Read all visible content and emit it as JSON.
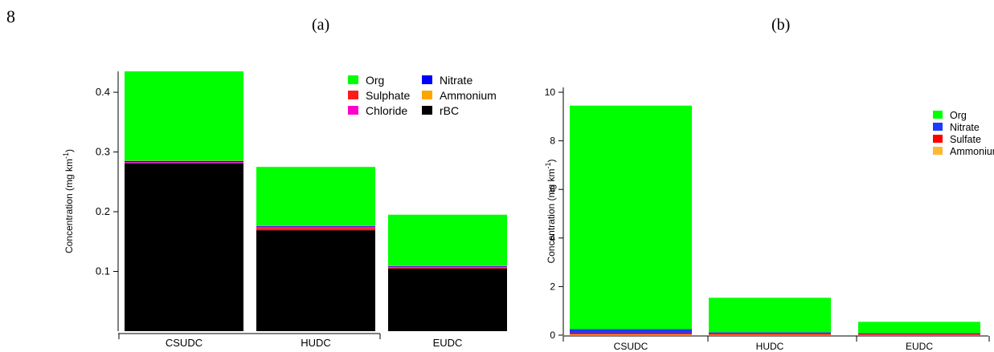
{
  "page_number": "8",
  "panels": [
    {
      "label": "(a)"
    },
    {
      "label": "(b)"
    }
  ],
  "chart_data": [
    {
      "type": "bar",
      "stacked": true,
      "categories": [
        "CSUDC",
        "HUDC",
        "EUDC"
      ],
      "ylabel": "Concentration (mg km",
      "ylabel_sup": "-1",
      "ylabel_close": ")",
      "ylim": [
        0,
        0.435
      ],
      "yticks": [
        0.1,
        0.2,
        0.3,
        0.4
      ],
      "ytick_labels": [
        "0.1",
        "0.2",
        "0.3",
        "0.4"
      ],
      "legend_position": "top-right",
      "series": [
        {
          "name": "rBC",
          "color": "#000000",
          "values": [
            0.281,
            0.169,
            0.105
          ]
        },
        {
          "name": "Sulphate",
          "color": "#ff1a1a",
          "values": [
            0.001,
            0.004,
            0.002
          ]
        },
        {
          "name": "Chloride",
          "color": "#ff00cc",
          "values": [
            0.001,
            0.002,
            0.001
          ]
        },
        {
          "name": "Nitrate",
          "color": "#0000ff",
          "values": [
            0.002,
            0.001,
            0.001
          ]
        },
        {
          "name": "Ammonium",
          "color": "#ffa500",
          "values": [
            0.0005,
            0.0005,
            0.0005
          ]
        },
        {
          "name": "Org",
          "color": "#00ff00",
          "values": [
            0.1495,
            0.0985,
            0.0855
          ]
        }
      ],
      "legend_order": [
        "Org",
        "Nitrate",
        "Sulphate",
        "Ammonium",
        "Chloride",
        "rBC"
      ]
    },
    {
      "type": "bar",
      "stacked": true,
      "categories": [
        "CSUDC",
        "HUDC",
        "EUDC"
      ],
      "ylabel": "Concentration (mg km",
      "ylabel_sup": "-1",
      "ylabel_close": ")",
      "ylim": [
        0,
        10.2
      ],
      "yticks": [
        0,
        2,
        4,
        6,
        8,
        10
      ],
      "ytick_labels": [
        "0",
        "2",
        "4",
        "6",
        "8",
        "10"
      ],
      "legend_position": "right",
      "series": [
        {
          "name": "Ammonium",
          "color": "#ffb833",
          "values": [
            0.03,
            0.02,
            0.01
          ]
        },
        {
          "name": "Sulfate",
          "color": "#ff0000",
          "values": [
            0.07,
            0.06,
            0.04
          ]
        },
        {
          "name": "Nitrate",
          "color": "#1a3cff",
          "values": [
            0.15,
            0.04,
            0.03
          ]
        },
        {
          "name": "Org",
          "color": "#00ff00",
          "values": [
            9.2,
            1.42,
            0.47
          ]
        }
      ],
      "legend_order": [
        "Org",
        "Nitrate",
        "Sulfate",
        "Ammonium"
      ]
    }
  ]
}
